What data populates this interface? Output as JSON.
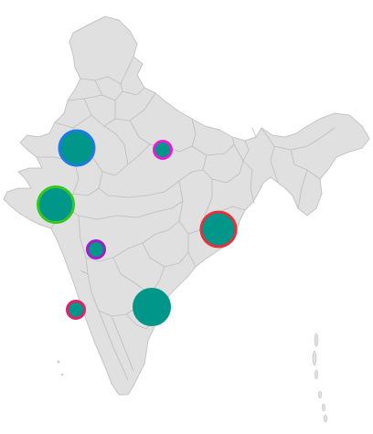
{
  "map": {
    "region": "India",
    "base_fill": "#e0e0e0",
    "border_color": "#c4c4c4",
    "bubble_fill": "#00968a"
  },
  "bubbles": [
    {
      "id": "rajasthan-north",
      "stroke": "#1e7be6",
      "size": "large"
    },
    {
      "id": "uttar-pradesh",
      "stroke": "#e61ed2",
      "size": "small"
    },
    {
      "id": "gujarat",
      "stroke": "#32c81e",
      "size": "large"
    },
    {
      "id": "odisha",
      "stroke": "#e6303a",
      "size": "large"
    },
    {
      "id": "maharashtra",
      "stroke": "#a01ec8",
      "size": "small"
    },
    {
      "id": "karnataka",
      "stroke": "#e61e64",
      "size": "small"
    },
    {
      "id": "andhra-pradesh",
      "stroke": "#00968a",
      "size": "large"
    }
  ]
}
